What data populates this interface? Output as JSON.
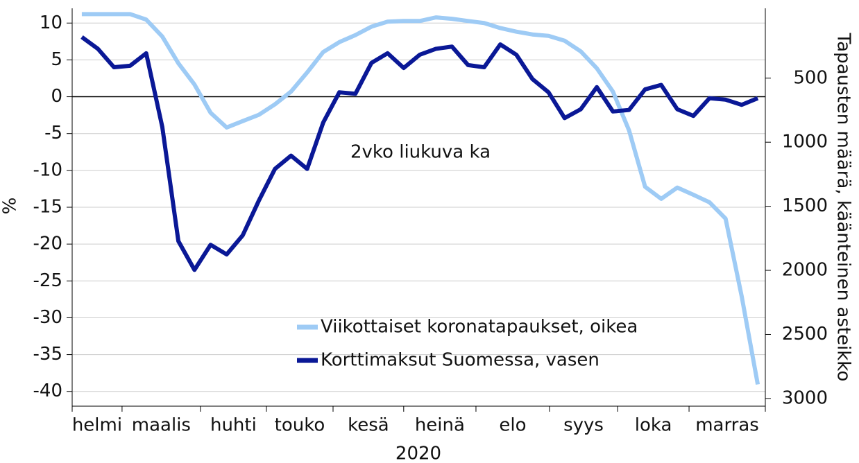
{
  "chart_data": {
    "type": "line",
    "annotation": "2vko liukuva ka",
    "ylabel": "%",
    "y2label": "Tapausten määrä, käänteinen asteikko",
    "xlabel": "2020",
    "categories": [
      "helmi",
      "maalis",
      "huhti",
      "touko",
      "kesä",
      "heinä",
      "elo",
      "syys",
      "loka",
      "marras"
    ],
    "xticks": [
      -0.6,
      2.5,
      7.37,
      11.47,
      15.61,
      20.0,
      24.49,
      29.06,
      33.29,
      37.73,
      42.47
    ],
    "xlim": [
      -0.6,
      42.47
    ],
    "x": [
      0,
      1,
      2,
      3,
      4,
      5,
      6,
      7,
      8,
      9,
      10,
      11,
      12,
      13,
      14,
      15,
      16,
      17,
      18,
      19,
      20,
      21,
      22,
      23,
      24,
      25,
      26,
      27,
      28,
      29,
      30,
      31,
      32,
      33,
      34,
      35,
      36,
      37,
      38,
      39,
      40,
      41,
      42
    ],
    "ylim": [
      -42,
      12
    ],
    "yticks": [
      10,
      5,
      0,
      -5,
      -10,
      -15,
      -20,
      -25,
      -30,
      -35,
      -40
    ],
    "y2lim": [
      3060,
      -45
    ],
    "y2ticks": [
      500,
      1000,
      1500,
      2000,
      2500,
      3000
    ],
    "grid": true,
    "series": [
      {
        "name": "Viikottaiset koronatapaukset, oikea",
        "color": "#9ecbf5",
        "axis": "y2",
        "values": [
          0,
          0,
          0,
          0,
          43,
          175,
          384,
          550,
          770,
          885,
          835,
          786,
          704,
          605,
          456,
          296,
          219,
          164,
          98,
          59,
          54,
          54,
          26,
          37,
          54,
          70,
          109,
          137,
          159,
          170,
          208,
          291,
          423,
          605,
          907,
          1348,
          1442,
          1354,
          1410,
          1469,
          1596,
          2202,
          2890
        ]
      },
      {
        "name": "Korttimaksut Suomessa, vasen",
        "color": "#0a1896",
        "axis": "y",
        "values": [
          8.1,
          6.5,
          4.0,
          4.2,
          5.9,
          -4.1,
          -19.6,
          -23.5,
          -20.1,
          -21.4,
          -18.8,
          -14.1,
          -9.8,
          -8.0,
          -9.8,
          -3.5,
          0.6,
          0.4,
          4.6,
          5.9,
          3.9,
          5.7,
          6.5,
          6.8,
          4.3,
          4.0,
          7.1,
          5.7,
          2.4,
          0.6,
          -2.9,
          -1.7,
          1.3,
          -2.0,
          -1.8,
          1.0,
          1.6,
          -1.7,
          -2.6,
          -0.2,
          -0.4,
          -1.1,
          -0.2
        ]
      }
    ]
  }
}
